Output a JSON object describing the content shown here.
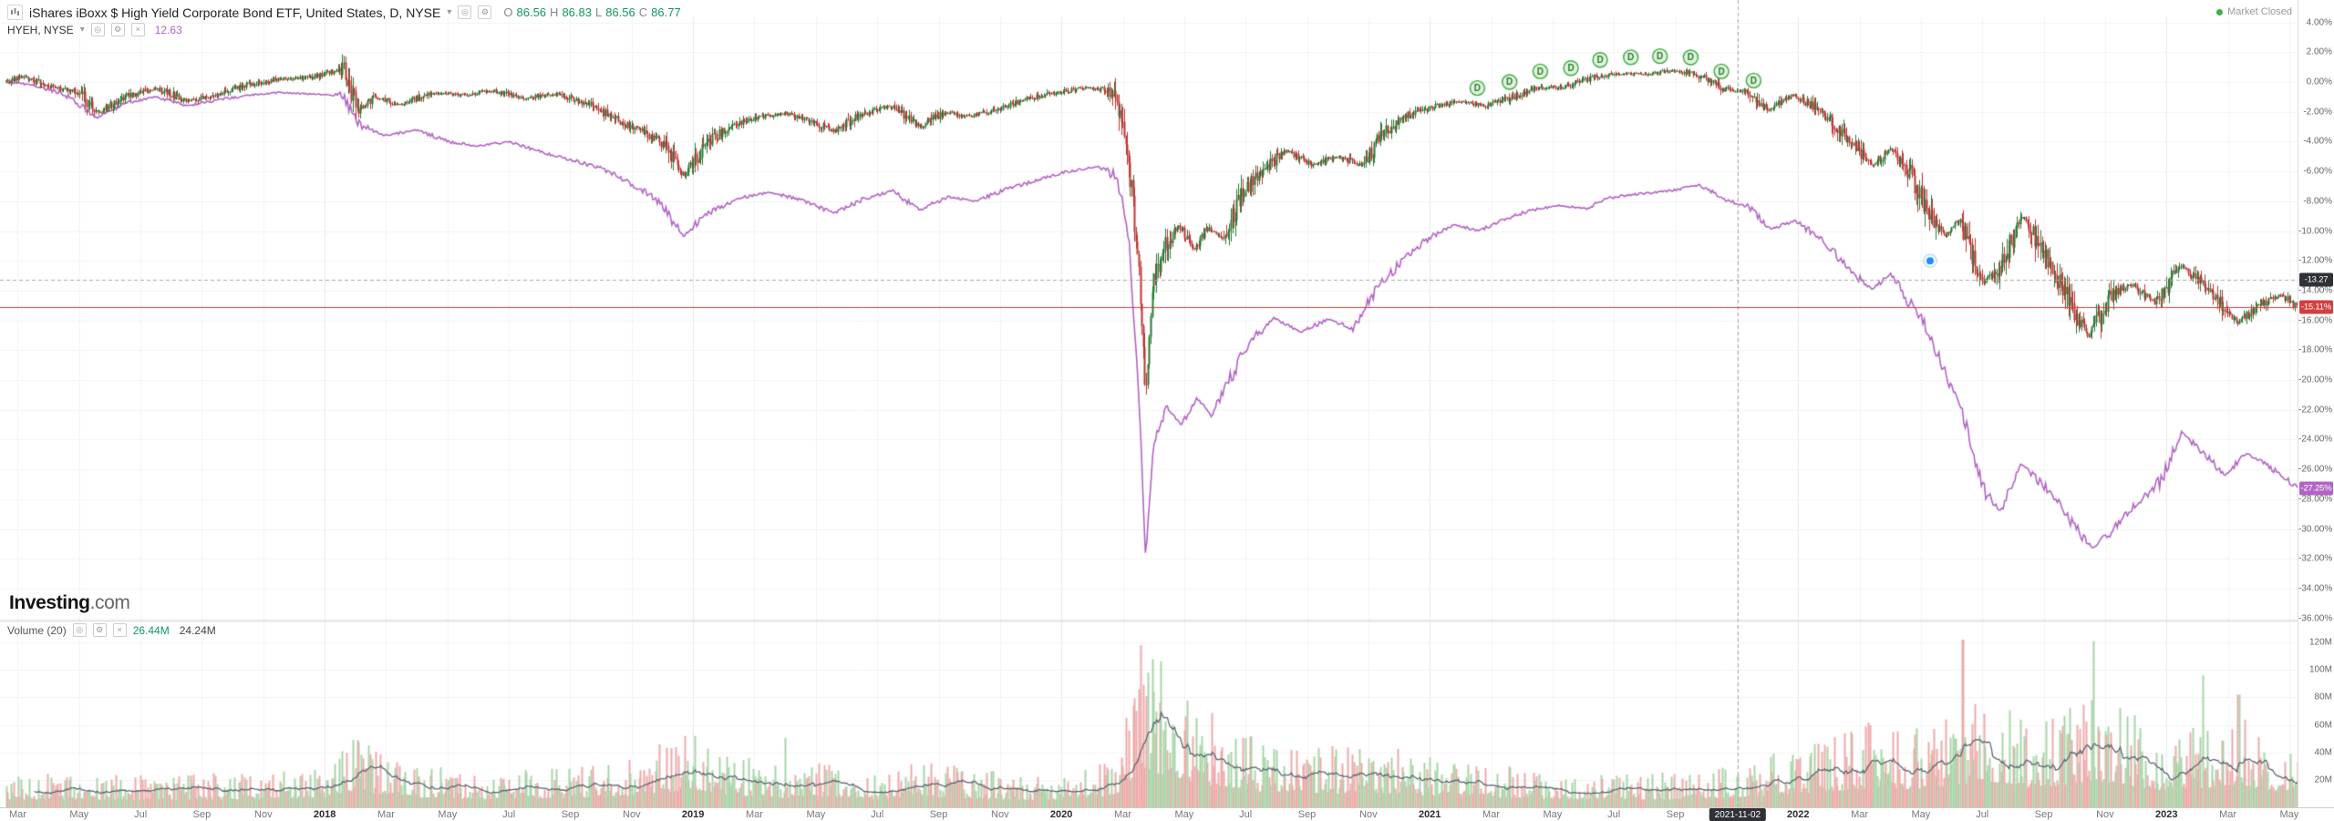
{
  "header": {
    "title": "iShares iBoxx $ High Yield Corporate Bond ETF, United States, D, NYSE",
    "ohlc": {
      "o_key": "O",
      "o": "86.56",
      "h_key": "H",
      "h": "86.83",
      "l_key": "L",
      "l": "86.56",
      "c_key": "C",
      "c": "86.77"
    },
    "compare": {
      "name": "HYEH, NYSE",
      "value": "12.63"
    },
    "market_status": "Market Closed"
  },
  "icons": {
    "eye": "◎",
    "settings": "⚙",
    "close": "×",
    "chevron_down": "▾"
  },
  "watermark": {
    "bold": "Investing",
    "rest": ".com"
  },
  "volume_legend": {
    "label": "Volume (20)",
    "value": "26.44M",
    "ma_value": "24.24M"
  },
  "chart_data": {
    "type": "candlestick+line",
    "t0": 1.6,
    "t1": 76.3,
    "time_unit": "months since 2017-01-01",
    "y_axis": {
      "max": 4,
      "min": -36,
      "step": 2,
      "format": "percent",
      "labels": [
        "4.00%",
        "2.00%",
        "0.00%",
        "-2.00%",
        "-4.00%",
        "-6.00%",
        "-8.00%",
        "-10.00%",
        "-12.00%",
        "-14.00%",
        "-16.00%",
        "-18.00%",
        "-20.00%",
        "-22.00%",
        "-24.00%",
        "-26.00%",
        "-28.00%",
        "-30.00%",
        "-32.00%",
        "-34.00%",
        "-36.00%"
      ]
    },
    "x_axis": {
      "ticks": [
        {
          "t": 2,
          "l": "Mar"
        },
        {
          "t": 4,
          "l": "May"
        },
        {
          "t": 6,
          "l": "Jul"
        },
        {
          "t": 8,
          "l": "Sep"
        },
        {
          "t": 10,
          "l": "Nov"
        },
        {
          "t": 12,
          "l": "2018",
          "year": true
        },
        {
          "t": 14,
          "l": "Mar"
        },
        {
          "t": 16,
          "l": "May"
        },
        {
          "t": 18,
          "l": "Jul"
        },
        {
          "t": 20,
          "l": "Sep"
        },
        {
          "t": 22,
          "l": "Nov"
        },
        {
          "t": 24,
          "l": "2019",
          "year": true
        },
        {
          "t": 26,
          "l": "Mar"
        },
        {
          "t": 28,
          "l": "May"
        },
        {
          "t": 30,
          "l": "Jul"
        },
        {
          "t": 32,
          "l": "Sep"
        },
        {
          "t": 34,
          "l": "Nov"
        },
        {
          "t": 36,
          "l": "2020",
          "year": true
        },
        {
          "t": 38,
          "l": "Mar"
        },
        {
          "t": 40,
          "l": "May"
        },
        {
          "t": 42,
          "l": "Jul"
        },
        {
          "t": 44,
          "l": "Sep"
        },
        {
          "t": 46,
          "l": "Nov"
        },
        {
          "t": 48,
          "l": "2021",
          "year": true
        },
        {
          "t": 50,
          "l": "Mar"
        },
        {
          "t": 52,
          "l": "May"
        },
        {
          "t": 54,
          "l": "Jul"
        },
        {
          "t": 56,
          "l": "Sep"
        },
        {
          "t": 58,
          "l": "Nov"
        },
        {
          "t": 60,
          "l": "2022",
          "year": true
        },
        {
          "t": 62,
          "l": "Mar"
        },
        {
          "t": 64,
          "l": "May"
        },
        {
          "t": 66,
          "l": "Jul"
        },
        {
          "t": 68,
          "l": "Sep"
        },
        {
          "t": 70,
          "l": "Nov"
        },
        {
          "t": 72,
          "l": "2023",
          "year": true
        },
        {
          "t": 74,
          "l": "Mar"
        },
        {
          "t": 76,
          "l": "May"
        }
      ]
    },
    "main_series": {
      "name": "iShares iBoxx $ High Yield Corporate Bond ETF",
      "style": "candles",
      "up_color": "#267a35",
      "down_color": "#c03434",
      "last_value_pct": -15.11,
      "last_label": "-15.11%",
      "anchors_pct": [
        [
          1.6,
          0.0
        ],
        [
          2.2,
          0.4
        ],
        [
          3.0,
          -0.3
        ],
        [
          4.0,
          -0.6
        ],
        [
          4.6,
          -2.1
        ],
        [
          5.5,
          -1.0
        ],
        [
          6.5,
          -0.4
        ],
        [
          7.5,
          -1.3
        ],
        [
          8.5,
          -0.8
        ],
        [
          9.5,
          -0.2
        ],
        [
          10.5,
          0.2
        ],
        [
          11.5,
          0.3
        ],
        [
          12.6,
          0.9
        ],
        [
          13.1,
          -1.9
        ],
        [
          13.6,
          -1.0
        ],
        [
          14.5,
          -1.5
        ],
        [
          15.5,
          -0.7
        ],
        [
          16.5,
          -0.9
        ],
        [
          17.5,
          -0.6
        ],
        [
          18.5,
          -1.1
        ],
        [
          19.5,
          -0.8
        ],
        [
          20.5,
          -1.4
        ],
        [
          21.6,
          -2.6
        ],
        [
          22.6,
          -3.6
        ],
        [
          23.2,
          -4.6
        ],
        [
          23.7,
          -6.3
        ],
        [
          24.3,
          -4.4
        ],
        [
          25.0,
          -3.2
        ],
        [
          26.0,
          -2.4
        ],
        [
          27.0,
          -2.1
        ],
        [
          27.8,
          -2.6
        ],
        [
          28.6,
          -3.3
        ],
        [
          29.5,
          -2.1
        ],
        [
          30.5,
          -1.6
        ],
        [
          31.4,
          -3.0
        ],
        [
          32.2,
          -2.0
        ],
        [
          33.0,
          -2.3
        ],
        [
          34.0,
          -1.8
        ],
        [
          35.0,
          -1.1
        ],
        [
          35.8,
          -0.7
        ],
        [
          36.8,
          -0.4
        ],
        [
          37.6,
          -0.6
        ],
        [
          38.0,
          -2.2
        ],
        [
          38.3,
          -7.5
        ],
        [
          38.55,
          -13.5
        ],
        [
          38.75,
          -21.0
        ],
        [
          38.95,
          -13.8
        ],
        [
          39.3,
          -11.2
        ],
        [
          39.8,
          -9.6
        ],
        [
          40.3,
          -11.3
        ],
        [
          40.8,
          -9.8
        ],
        [
          41.3,
          -10.6
        ],
        [
          41.8,
          -7.8
        ],
        [
          42.5,
          -6.0
        ],
        [
          43.3,
          -4.6
        ],
        [
          44.2,
          -5.6
        ],
        [
          45.0,
          -5.0
        ],
        [
          45.8,
          -5.6
        ],
        [
          46.5,
          -3.4
        ],
        [
          47.3,
          -2.2
        ],
        [
          48.2,
          -1.6
        ],
        [
          49.0,
          -1.3
        ],
        [
          49.8,
          -1.6
        ],
        [
          50.6,
          -1.1
        ],
        [
          51.5,
          -0.4
        ],
        [
          52.4,
          -0.3
        ],
        [
          53.3,
          0.3
        ],
        [
          54.2,
          0.6
        ],
        [
          55.1,
          0.5
        ],
        [
          56.0,
          0.8
        ],
        [
          56.8,
          0.4
        ],
        [
          57.6,
          -0.5
        ],
        [
          58.4,
          -0.7
        ],
        [
          59.0,
          -1.9
        ],
        [
          59.8,
          -0.9
        ],
        [
          60.6,
          -1.7
        ],
        [
          61.5,
          -3.6
        ],
        [
          62.4,
          -5.6
        ],
        [
          63.0,
          -4.5
        ],
        [
          63.7,
          -6.3
        ],
        [
          64.4,
          -9.4
        ],
        [
          64.8,
          -10.4
        ],
        [
          65.2,
          -9.2
        ],
        [
          66.0,
          -13.4
        ],
        [
          66.6,
          -12.3
        ],
        [
          67.3,
          -8.9
        ],
        [
          68.2,
          -12.4
        ],
        [
          69.0,
          -15.4
        ],
        [
          69.45,
          -17.2
        ],
        [
          70.2,
          -14.2
        ],
        [
          70.9,
          -13.6
        ],
        [
          71.6,
          -14.8
        ],
        [
          72.5,
          -12.3
        ],
        [
          73.3,
          -13.8
        ],
        [
          74.3,
          -16.2
        ],
        [
          75.0,
          -15.0
        ],
        [
          75.7,
          -14.3
        ],
        [
          76.3,
          -15.11
        ]
      ]
    },
    "compare_series": {
      "name": "HYEH",
      "style": "line",
      "color": "#b264c4",
      "last_value_pct": -27.25,
      "last_label": "-27.25%",
      "anchors_pct": [
        [
          1.6,
          0.0
        ],
        [
          2.5,
          -0.2
        ],
        [
          3.5,
          -0.8
        ],
        [
          4.6,
          -2.4
        ],
        [
          5.5,
          -1.4
        ],
        [
          6.5,
          -1.0
        ],
        [
          7.5,
          -1.6
        ],
        [
          8.5,
          -1.2
        ],
        [
          9.5,
          -0.9
        ],
        [
          10.5,
          -0.7
        ],
        [
          11.5,
          -0.8
        ],
        [
          12.6,
          -0.9
        ],
        [
          13.1,
          -2.8
        ],
        [
          14.0,
          -3.6
        ],
        [
          15.0,
          -3.2
        ],
        [
          16.0,
          -4.0
        ],
        [
          17.0,
          -4.3
        ],
        [
          18.0,
          -4.0
        ],
        [
          19.0,
          -4.7
        ],
        [
          20.0,
          -5.2
        ],
        [
          21.0,
          -5.8
        ],
        [
          21.8,
          -6.6
        ],
        [
          22.8,
          -7.8
        ],
        [
          23.7,
          -10.3
        ],
        [
          24.5,
          -8.8
        ],
        [
          25.5,
          -7.8
        ],
        [
          26.5,
          -7.4
        ],
        [
          27.5,
          -7.9
        ],
        [
          28.6,
          -8.8
        ],
        [
          29.5,
          -7.9
        ],
        [
          30.5,
          -7.3
        ],
        [
          31.4,
          -8.6
        ],
        [
          32.3,
          -7.7
        ],
        [
          33.2,
          -8.0
        ],
        [
          34.2,
          -7.2
        ],
        [
          35.2,
          -6.6
        ],
        [
          36.2,
          -6.0
        ],
        [
          37.2,
          -5.7
        ],
        [
          37.8,
          -6.2
        ],
        [
          38.2,
          -10.5
        ],
        [
          38.5,
          -20.0
        ],
        [
          38.75,
          -32.0
        ],
        [
          39.0,
          -24.5
        ],
        [
          39.4,
          -21.8
        ],
        [
          39.9,
          -23.0
        ],
        [
          40.4,
          -21.2
        ],
        [
          40.9,
          -22.4
        ],
        [
          41.4,
          -20.3
        ],
        [
          42.1,
          -17.6
        ],
        [
          42.9,
          -15.8
        ],
        [
          43.8,
          -16.8
        ],
        [
          44.7,
          -15.9
        ],
        [
          45.5,
          -16.6
        ],
        [
          46.3,
          -13.8
        ],
        [
          47.2,
          -11.8
        ],
        [
          48.0,
          -10.4
        ],
        [
          48.8,
          -9.6
        ],
        [
          49.6,
          -10.0
        ],
        [
          50.4,
          -9.2
        ],
        [
          51.3,
          -8.6
        ],
        [
          52.2,
          -8.3
        ],
        [
          53.1,
          -8.5
        ],
        [
          54.0,
          -7.7
        ],
        [
          54.9,
          -7.5
        ],
        [
          55.8,
          -7.3
        ],
        [
          56.8,
          -6.9
        ],
        [
          57.6,
          -7.9
        ],
        [
          58.4,
          -8.4
        ],
        [
          59.1,
          -9.9
        ],
        [
          59.9,
          -9.3
        ],
        [
          60.8,
          -10.6
        ],
        [
          61.7,
          -12.7
        ],
        [
          62.4,
          -13.9
        ],
        [
          63.0,
          -12.9
        ],
        [
          63.6,
          -14.7
        ],
        [
          64.2,
          -16.6
        ],
        [
          64.8,
          -19.7
        ],
        [
          65.4,
          -22.5
        ],
        [
          66.0,
          -27.2
        ],
        [
          66.6,
          -28.9
        ],
        [
          67.3,
          -25.6
        ],
        [
          68.0,
          -27.1
        ],
        [
          68.6,
          -28.6
        ],
        [
          69.1,
          -30.1
        ],
        [
          69.6,
          -31.3
        ],
        [
          70.2,
          -30.2
        ],
        [
          70.9,
          -28.6
        ],
        [
          71.8,
          -26.8
        ],
        [
          72.5,
          -23.6
        ],
        [
          73.0,
          -24.4
        ],
        [
          73.9,
          -26.4
        ],
        [
          74.6,
          -24.9
        ],
        [
          75.3,
          -25.8
        ],
        [
          76.3,
          -27.25
        ]
      ]
    },
    "volume_series": {
      "label": "Volume (20)",
      "up_color": "#a8d5a8",
      "down_color": "#eeaaaa",
      "ma_color": "#5b6770",
      "y_labels": [
        "120M",
        "100M",
        "80M",
        "60M",
        "40M",
        "20M"
      ],
      "y_values": [
        120,
        100,
        80,
        60,
        40,
        20
      ],
      "anchors_millions": [
        [
          1.6,
          14
        ],
        [
          4,
          13
        ],
        [
          7,
          13
        ],
        [
          10,
          14
        ],
        [
          12,
          17
        ],
        [
          13.0,
          30
        ],
        [
          13.6,
          24
        ],
        [
          15,
          17
        ],
        [
          17,
          14
        ],
        [
          19,
          15
        ],
        [
          21,
          17
        ],
        [
          22.5,
          22
        ],
        [
          23.7,
          30
        ],
        [
          25,
          22
        ],
        [
          27,
          16
        ],
        [
          28.6,
          18
        ],
        [
          30,
          14
        ],
        [
          31.4,
          18
        ],
        [
          33,
          15
        ],
        [
          35,
          13
        ],
        [
          36.5,
          14
        ],
        [
          37.8,
          20
        ],
        [
          38.3,
          48
        ],
        [
          38.7,
          66
        ],
        [
          39.2,
          58
        ],
        [
          39.8,
          46
        ],
        [
          40.5,
          40
        ],
        [
          41.5,
          33
        ],
        [
          42.5,
          27
        ],
        [
          43.5,
          23
        ],
        [
          44.5,
          25
        ],
        [
          45.5,
          23
        ],
        [
          46.5,
          25
        ],
        [
          47.5,
          21
        ],
        [
          48.5,
          19
        ],
        [
          50,
          17
        ],
        [
          51.5,
          15
        ],
        [
          53,
          13
        ],
        [
          54.5,
          13
        ],
        [
          56,
          14
        ],
        [
          57.5,
          16
        ],
        [
          58.6,
          19
        ],
        [
          59.5,
          23
        ],
        [
          60.5,
          25
        ],
        [
          61.5,
          29
        ],
        [
          62.5,
          35
        ],
        [
          63.5,
          31
        ],
        [
          64.5,
          35
        ],
        [
          65.5,
          41
        ],
        [
          66.1,
          45
        ],
        [
          66.7,
          41
        ],
        [
          67.4,
          33
        ],
        [
          68.5,
          37
        ],
        [
          69.5,
          45
        ],
        [
          70.5,
          41
        ],
        [
          71.5,
          31
        ],
        [
          72.5,
          29
        ],
        [
          73.5,
          35
        ],
        [
          74.3,
          39
        ],
        [
          75.1,
          31
        ],
        [
          76.3,
          26
        ]
      ],
      "spikes": [
        {
          "t": 13.05,
          "v": 49
        },
        {
          "t": 23.72,
          "v": 52
        },
        {
          "t": 38.55,
          "v": 86
        },
        {
          "t": 38.8,
          "v": 98
        },
        {
          "t": 39.0,
          "v": 84
        },
        {
          "t": 65.35,
          "v": 122
        },
        {
          "t": 69.62,
          "v": 121
        },
        {
          "t": 73.2,
          "v": 96
        },
        {
          "t": 74.35,
          "v": 82
        }
      ]
    },
    "events": {
      "dividend_label": "D",
      "dividend_t": [
        49.55,
        50.6,
        51.6,
        52.6,
        53.55,
        54.55,
        55.5,
        56.5,
        57.5,
        58.55
      ],
      "marker_dot": {
        "t": 64.3,
        "pct": -12.0,
        "color": "#1f8ef1"
      }
    },
    "crosshair": {
      "t": 58.03,
      "date_label": "2021-11-02",
      "pct": -13.27,
      "price_label": "-13.27"
    }
  }
}
